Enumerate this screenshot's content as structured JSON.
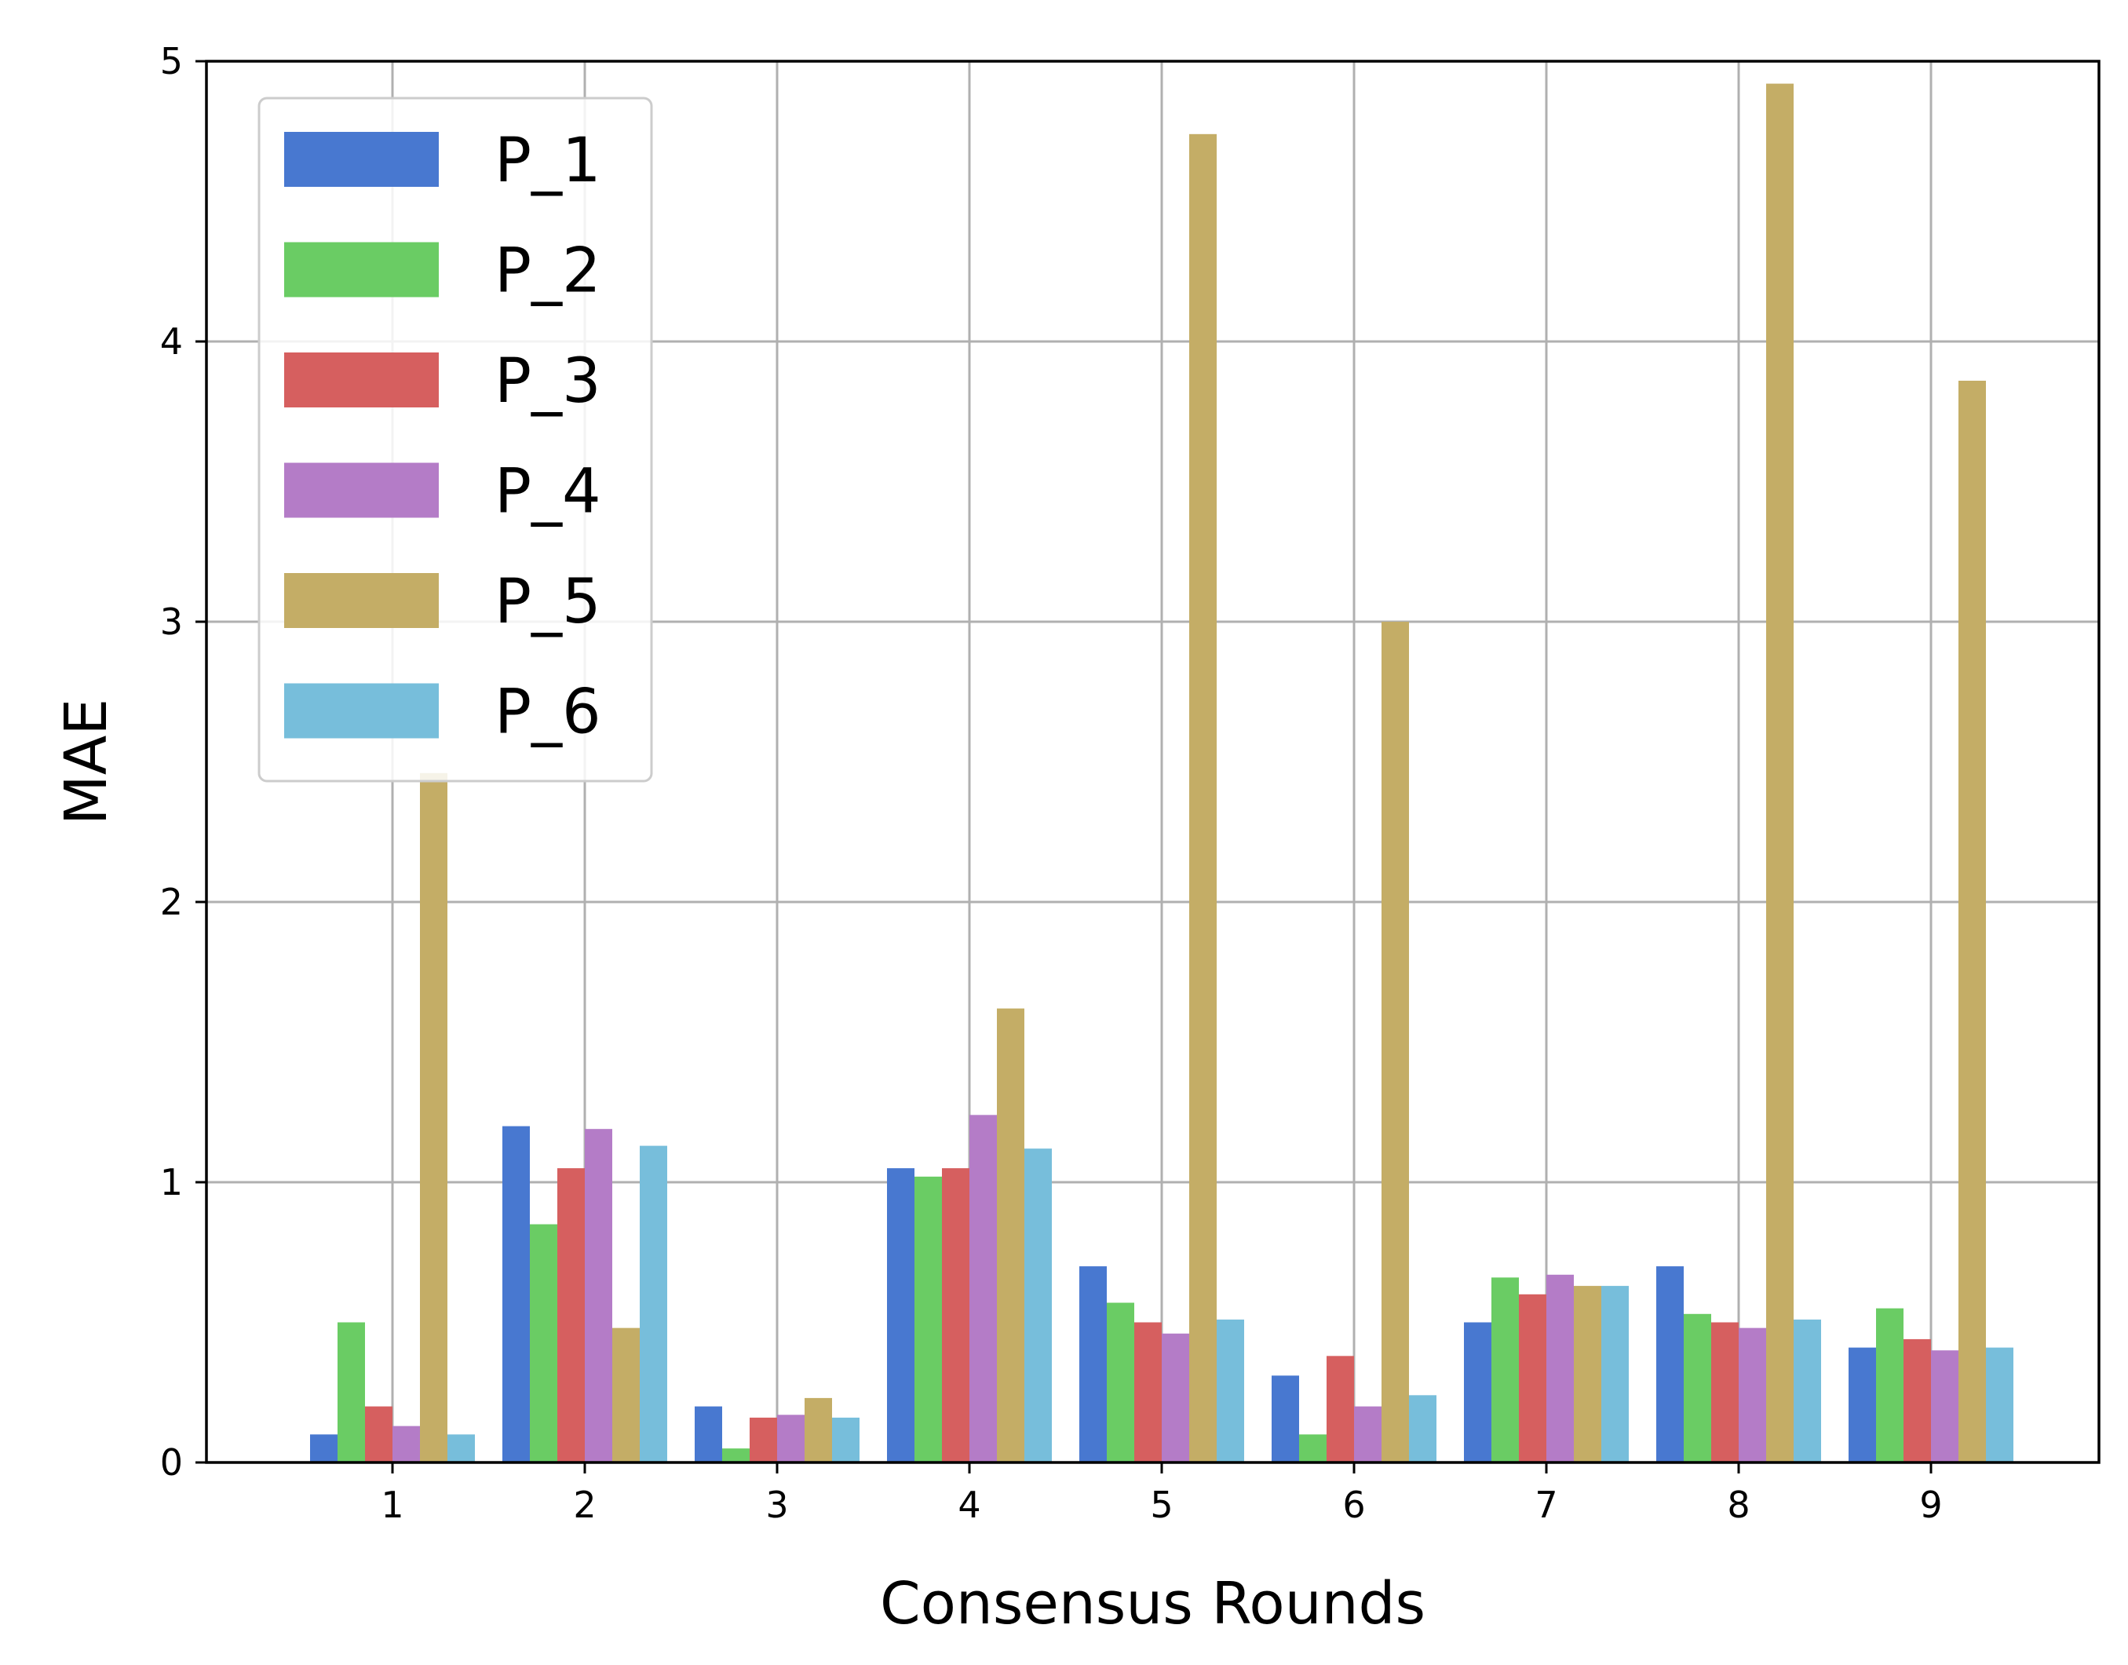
{
  "chart_data": {
    "type": "bar",
    "xlabel": "Consensus Rounds",
    "ylabel": "MAE",
    "ylim": [
      0,
      5
    ],
    "yticks": [
      0,
      1,
      2,
      3,
      4,
      5
    ],
    "categories": [
      "1",
      "2",
      "3",
      "4",
      "5",
      "6",
      "7",
      "8",
      "9"
    ],
    "grid": true,
    "legend_position": "top-left",
    "series": [
      {
        "name": "P_1",
        "color": "#4878d0",
        "values": [
          0.1,
          1.2,
          0.2,
          1.05,
          0.7,
          0.31,
          0.5,
          0.7,
          0.41
        ]
      },
      {
        "name": "P_2",
        "color": "#6acc64",
        "values": [
          0.5,
          0.85,
          0.05,
          1.02,
          0.57,
          0.1,
          0.66,
          0.53,
          0.55
        ]
      },
      {
        "name": "P_3",
        "color": "#d65f5f",
        "values": [
          0.2,
          1.05,
          0.16,
          1.05,
          0.5,
          0.38,
          0.6,
          0.5,
          0.44
        ]
      },
      {
        "name": "P_4",
        "color": "#b47cc7",
        "values": [
          0.13,
          1.19,
          0.17,
          1.24,
          0.46,
          0.2,
          0.67,
          0.48,
          0.4
        ]
      },
      {
        "name": "P_5",
        "color": "#c4ad66",
        "values": [
          2.46,
          0.48,
          0.23,
          1.62,
          4.74,
          3.0,
          0.63,
          4.92,
          3.86
        ]
      },
      {
        "name": "P_6",
        "color": "#77bedb",
        "values": [
          0.1,
          1.13,
          0.16,
          1.12,
          0.51,
          0.24,
          0.63,
          0.51,
          0.41
        ]
      }
    ]
  }
}
